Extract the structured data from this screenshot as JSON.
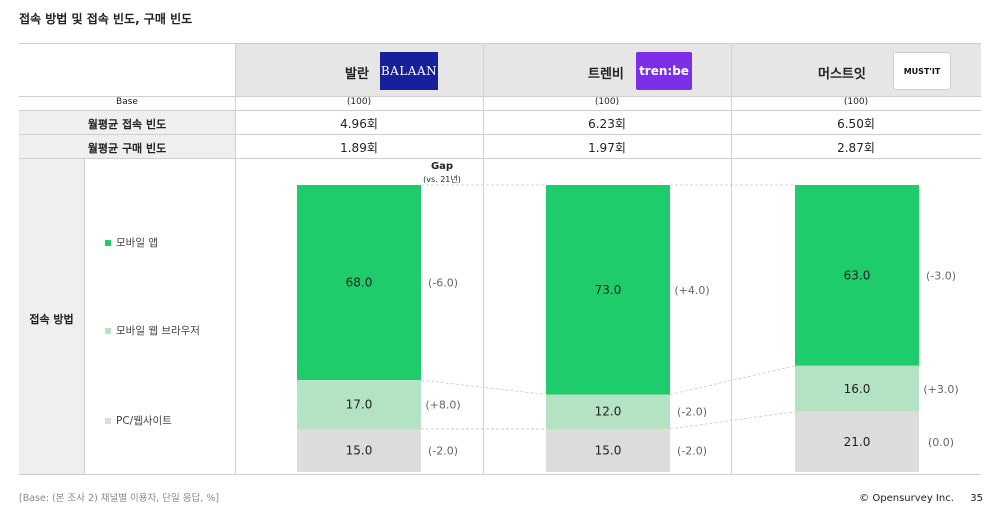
{
  "title": "접속 방법 및 접속 빈도, 구매 빈도",
  "brands": [
    {
      "name": "발란",
      "logo_text": "BALAAN",
      "base": "(100)",
      "visit_freq": "4.96회",
      "purchase_freq": "1.89회"
    },
    {
      "name": "트렌비",
      "logo_text": "tren:be",
      "base": "(100)",
      "visit_freq": "6.23회",
      "purchase_freq": "1.97회"
    },
    {
      "name": "머스트잇",
      "logo_text": "MUST'IT",
      "base": "(100)",
      "visit_freq": "6.50회",
      "purchase_freq": "2.87회"
    }
  ],
  "rows": {
    "base_label": "Base",
    "visit_label": "월평균 접속 빈도",
    "purchase_label": "월평균 구매 빈도",
    "method_label": "접속 방법"
  },
  "gap_header": {
    "title": "Gap",
    "sub": "(vs. 21년)"
  },
  "colors": {
    "mobile_app": "#1ecc6b",
    "mobile_web": "#b3e3c3",
    "pc_web": "#dcdcdc"
  },
  "chart_data": {
    "type": "bar",
    "stacked": true,
    "categories": [
      "발란",
      "트렌비",
      "머스트잇"
    ],
    "series": [
      {
        "name": "모바일 앱",
        "values": [
          68.0,
          73.0,
          63.0
        ],
        "gap": [
          "(-6.0)",
          "(+4.0)",
          "(-3.0)"
        ]
      },
      {
        "name": "모바일 웹 브라우저",
        "values": [
          17.0,
          12.0,
          16.0
        ],
        "gap": [
          "(+8.0)",
          "(-2.0)",
          "(+3.0)"
        ]
      },
      {
        "name": "PC/웹사이트",
        "values": [
          15.0,
          15.0,
          21.0
        ],
        "gap": [
          "(-2.0)",
          "(-2.0)",
          "(0.0)"
        ]
      }
    ],
    "ylim": [
      0,
      100
    ],
    "unit": "%"
  },
  "footer": {
    "base_note": "[Base: (본 조사 2) 채널별 이용자, 단일 응답, %]",
    "copyright": "© Opensurvey Inc.",
    "page": "35"
  }
}
